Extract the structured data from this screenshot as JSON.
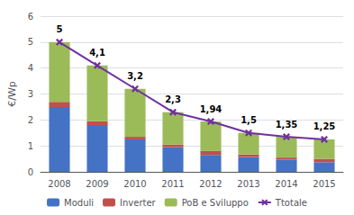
{
  "chart_data": {
    "type": "bar",
    "categories": [
      "2008",
      "2009",
      "2010",
      "2011",
      "2012",
      "2013",
      "2014",
      "2015"
    ],
    "series": [
      {
        "name": "Moduli",
        "type": "bar",
        "color": "#4472C4",
        "values": [
          2.5,
          1.8,
          1.25,
          0.95,
          0.65,
          0.57,
          0.47,
          0.37
        ]
      },
      {
        "name": "Inverter",
        "type": "bar",
        "color": "#C0504D",
        "values": [
          0.2,
          0.15,
          0.1,
          0.1,
          0.15,
          0.1,
          0.08,
          0.13
        ]
      },
      {
        "name": "PoB e Sviluppo",
        "type": "bar",
        "color": "#9BBB59",
        "values": [
          2.3,
          2.15,
          1.85,
          1.25,
          1.14,
          0.83,
          0.8,
          0.75
        ]
      },
      {
        "name": "Ttotale",
        "type": "line",
        "color": "#7030A0",
        "marker": "x",
        "data_labels": true,
        "values": [
          5.0,
          4.1,
          3.2,
          2.3,
          1.94,
          1.5,
          1.35,
          1.25
        ],
        "value_labels": [
          "5",
          "4,1",
          "3,2",
          "2,3",
          "1,94",
          "1,5",
          "1,35",
          "1,25"
        ]
      }
    ],
    "ylabel": "€/Wp",
    "ylim": [
      0,
      6
    ],
    "yticks": [
      0,
      1,
      2,
      3,
      4,
      5,
      6
    ],
    "stacked": true,
    "grid": true,
    "legend": "bottom"
  }
}
